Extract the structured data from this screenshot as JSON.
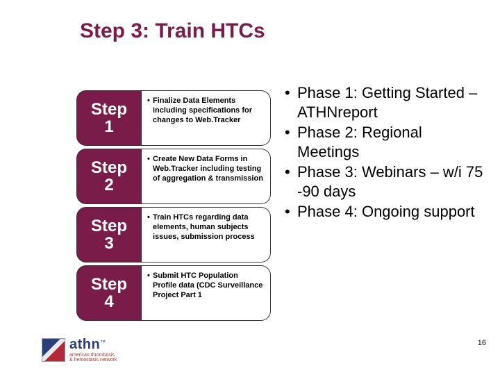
{
  "colors": {
    "accent": "#7a1c4a",
    "text": "#000000",
    "background": "#ffffff",
    "logo_blue": "#2a3e7a",
    "logo_red": "#b22a3a"
  },
  "typography": {
    "title_fontsize": 30,
    "badge_fontsize": 24,
    "desc_fontsize": 11,
    "phase_fontsize": 22,
    "pagenum_fontsize": 11
  },
  "title": "Step 3: Train HTCs",
  "steps": [
    {
      "label_top": "Step",
      "label_num": "1",
      "desc": "Finalize Data Elements including specifications for changes to Web.Tracker"
    },
    {
      "label_top": "Step",
      "label_num": "2",
      "desc": "Create New Data Forms in Web.Tracker including testing of aggregation & transmission"
    },
    {
      "label_top": "Step",
      "label_num": "3",
      "desc": "Train HTCs regarding data elements, human subjects issues, submission process"
    },
    {
      "label_top": "Step",
      "label_num": "4",
      "desc": "Submit HTC Population Profile data (CDC Surveillance Project Part 1"
    }
  ],
  "phases": [
    "Phase 1: Getting Started – ATHNreport",
    "Phase 2: Regional Meetings",
    "Phase 3: Webinars – w/i 75 -90 days",
    "Phase 4: Ongoing support"
  ],
  "page_number": "16",
  "logo": {
    "brand": "athn",
    "tm": "™",
    "tagline1": "american thrombosis",
    "tagline2": "& hemostasis network"
  }
}
